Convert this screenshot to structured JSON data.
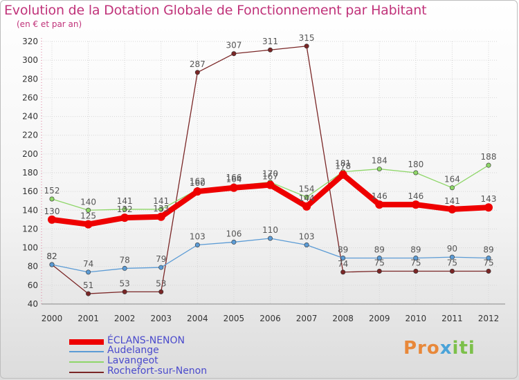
{
  "chart_data": {
    "type": "line",
    "title": "Evolution de la Dotation Globale de Fonctionnement par Habitant",
    "subtitle": "(en € et par an)",
    "xlabel": "",
    "ylabel": "",
    "ylim": [
      40,
      320
    ],
    "yticks": [
      40,
      60,
      80,
      100,
      120,
      140,
      160,
      180,
      200,
      220,
      240,
      260,
      280,
      300,
      320
    ],
    "categories": [
      "2000",
      "2001",
      "2002",
      "2003",
      "2004",
      "2005",
      "2006",
      "2007",
      "2008",
      "2009",
      "2010",
      "2011",
      "2012"
    ],
    "series": [
      {
        "name": "ÉCLANS-NENON",
        "color": "#ee0000",
        "values": [
          130,
          125,
          132,
          133,
          160,
          164,
          167,
          144,
          178,
          146,
          146,
          141,
          143
        ],
        "labels": [
          "130",
          "125",
          "132",
          "133",
          "160",
          "164",
          "167",
          "144",
          "178",
          "146",
          "146",
          "141",
          "143"
        ]
      },
      {
        "name": "Audelange",
        "color": "#5b9bd5",
        "values": [
          82,
          74,
          78,
          79,
          103,
          106,
          110,
          103,
          89,
          89,
          89,
          90,
          89
        ],
        "labels": [
          "82",
          "74",
          "78",
          "79",
          "103",
          "106",
          "110",
          "103",
          "89",
          "89",
          "89",
          "90",
          "89"
        ]
      },
      {
        "name": "Lavangeot",
        "color": "#8ed668",
        "values": [
          152,
          140,
          141,
          141,
          162,
          166,
          170,
          154,
          181,
          184,
          180,
          164,
          188
        ],
        "labels": [
          "152",
          "140",
          "141",
          "141",
          "162",
          "166",
          "170",
          "154",
          "181",
          "184",
          "180",
          "164",
          "188"
        ]
      },
      {
        "name": "Rochefort-sur-Nenon",
        "color": "#7a2626",
        "values": [
          82,
          51,
          53,
          53,
          287,
          307,
          311,
          315,
          74,
          75,
          75,
          75,
          75
        ],
        "labels": [
          "82",
          "51",
          "53",
          "53",
          "287",
          "307",
          "311",
          "315",
          "74",
          "75",
          "75",
          "75",
          "75"
        ]
      }
    ],
    "legend_position": "bottom-left"
  },
  "logo": {
    "part1": "Pro",
    "part2": "x",
    "part3": "iti"
  }
}
